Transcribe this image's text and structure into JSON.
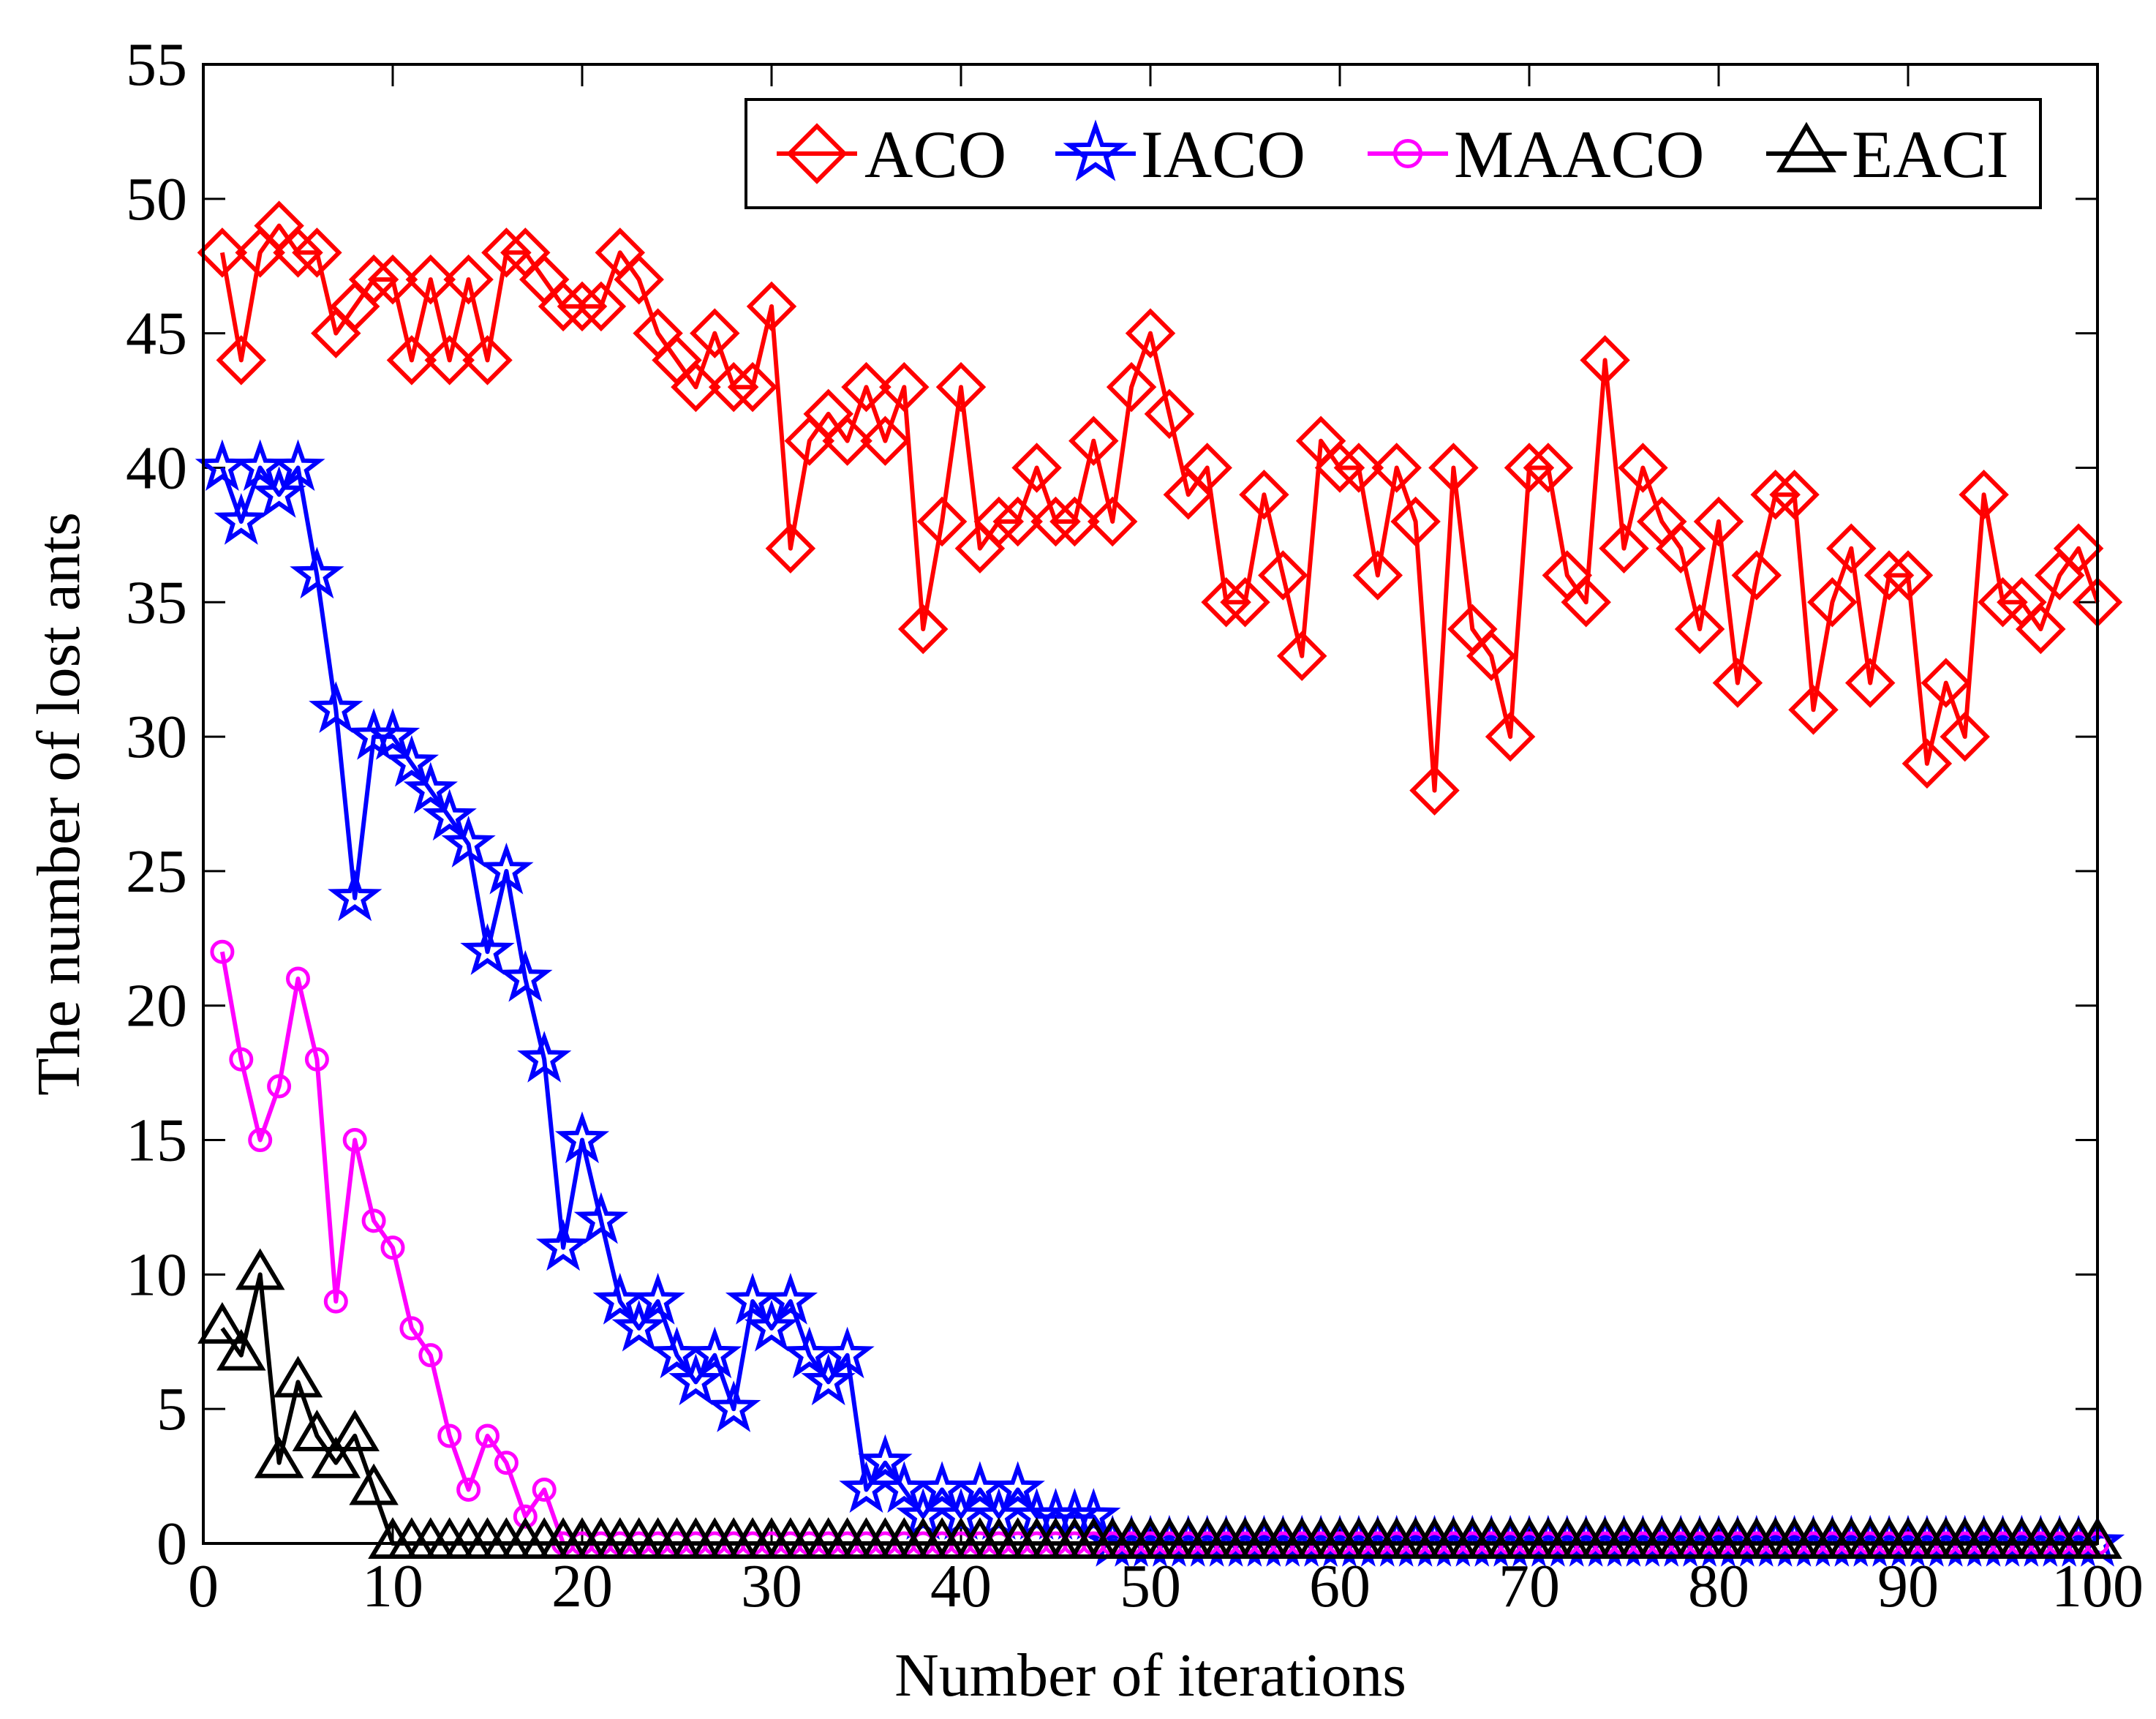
{
  "chart_data": {
    "type": "line",
    "title": "",
    "xlabel": "Number of iterations",
    "ylabel": "The number of lost ants",
    "xlim": [
      0,
      100
    ],
    "ylim": [
      0,
      55
    ],
    "xticks": [
      0,
      10,
      20,
      30,
      40,
      50,
      60,
      70,
      80,
      90,
      100
    ],
    "yticks": [
      0,
      5,
      10,
      15,
      20,
      25,
      30,
      35,
      40,
      45,
      50,
      55
    ],
    "grid": false,
    "legend_position": "top-right",
    "series": [
      {
        "name": "ACO",
        "color": "#ff0000",
        "marker": "diamond",
        "x": [
          1,
          2,
          3,
          4,
          5,
          6,
          7,
          8,
          9,
          10,
          11,
          12,
          13,
          14,
          15,
          16,
          17,
          18,
          19,
          20,
          21,
          22,
          23,
          24,
          25,
          26,
          27,
          28,
          29,
          30,
          31,
          32,
          33,
          34,
          35,
          36,
          37,
          38,
          39,
          40,
          41,
          42,
          43,
          44,
          45,
          46,
          47,
          48,
          49,
          50,
          51,
          52,
          53,
          54,
          55,
          56,
          57,
          58,
          59,
          60,
          61,
          62,
          63,
          64,
          65,
          66,
          67,
          68,
          69,
          70,
          71,
          72,
          73,
          74,
          75,
          76,
          77,
          78,
          79,
          80,
          81,
          82,
          83,
          84,
          85,
          86,
          87,
          88,
          89,
          90,
          91,
          92,
          93,
          94,
          95,
          96,
          97,
          98,
          99,
          100
        ],
        "values": [
          48,
          44,
          48,
          49,
          48,
          48,
          45,
          46,
          47,
          47,
          44,
          47,
          44,
          47,
          44,
          48,
          48,
          47,
          46,
          46,
          46,
          48,
          47,
          45,
          44,
          43,
          45,
          43,
          43,
          46,
          37,
          41,
          42,
          41,
          43,
          41,
          43,
          34,
          38,
          43,
          37,
          38,
          38,
          40,
          38,
          38,
          41,
          38,
          43,
          45,
          42,
          39,
          40,
          35,
          35,
          39,
          36,
          33,
          41,
          40,
          40,
          36,
          40,
          38,
          28,
          40,
          34,
          33,
          30,
          40,
          40,
          36,
          35,
          44,
          37,
          40,
          38,
          37,
          34,
          38,
          32,
          36,
          39,
          39,
          31,
          35,
          37,
          32,
          36,
          36,
          29,
          32,
          30,
          39,
          35,
          35,
          34,
          36,
          37,
          35
        ]
      },
      {
        "name": "IACO",
        "color": "#0000ff",
        "marker": "star",
        "x": [
          1,
          2,
          3,
          4,
          5,
          6,
          7,
          8,
          9,
          10,
          11,
          12,
          13,
          14,
          15,
          16,
          17,
          18,
          19,
          20,
          21,
          22,
          23,
          24,
          25,
          26,
          27,
          28,
          29,
          30,
          31,
          32,
          33,
          34,
          35,
          36,
          37,
          38,
          39,
          40,
          41,
          42,
          43,
          44,
          45,
          46,
          47,
          48,
          49,
          50,
          51,
          52,
          53,
          54,
          55,
          56,
          57,
          58,
          59,
          60,
          61,
          62,
          63,
          64,
          65,
          66,
          67,
          68,
          69,
          70,
          71,
          72,
          73,
          74,
          75,
          76,
          77,
          78,
          79,
          80,
          81,
          82,
          83,
          84,
          85,
          86,
          87,
          88,
          89,
          90,
          91,
          92,
          93,
          94,
          95,
          96,
          97,
          98,
          99,
          100
        ],
        "values": [
          40,
          38,
          40,
          39,
          40,
          36,
          31,
          24,
          30,
          30,
          29,
          28,
          27,
          26,
          22,
          25,
          21,
          18,
          11,
          15,
          12,
          9,
          8,
          9,
          7,
          6,
          7,
          5,
          9,
          8,
          9,
          7,
          6,
          7,
          2,
          3,
          2,
          1,
          2,
          1,
          2,
          1,
          2,
          1,
          1,
          1,
          1,
          0,
          0,
          0,
          0,
          0,
          0,
          0,
          0,
          0,
          0,
          0,
          0,
          0,
          0,
          0,
          0,
          0,
          0,
          0,
          0,
          0,
          0,
          0,
          0,
          0,
          0,
          0,
          0,
          0,
          0,
          0,
          0,
          0,
          0,
          0,
          0,
          0,
          0,
          0,
          0,
          0,
          0,
          0,
          0,
          0,
          0,
          0,
          0,
          0,
          0,
          0,
          0,
          0
        ]
      },
      {
        "name": "MAACO",
        "color": "#ff00ff",
        "marker": "circle",
        "x": [
          1,
          2,
          3,
          4,
          5,
          6,
          7,
          8,
          9,
          10,
          11,
          12,
          13,
          14,
          15,
          16,
          17,
          18,
          19,
          20,
          21,
          22,
          23,
          24,
          25,
          26,
          27,
          28,
          29,
          30,
          31,
          32,
          33,
          34,
          35,
          36,
          37,
          38,
          39,
          40,
          41,
          42,
          43,
          44,
          45,
          46,
          47,
          48,
          49,
          50,
          51,
          52,
          53,
          54,
          55,
          56,
          57,
          58,
          59,
          60,
          61,
          62,
          63,
          64,
          65,
          66,
          67,
          68,
          69,
          70,
          71,
          72,
          73,
          74,
          75,
          76,
          77,
          78,
          79,
          80,
          81,
          82,
          83,
          84,
          85,
          86,
          87,
          88,
          89,
          90,
          91,
          92,
          93,
          94,
          95,
          96,
          97,
          98,
          99,
          100
        ],
        "values": [
          22,
          18,
          15,
          17,
          21,
          18,
          9,
          15,
          12,
          11,
          8,
          7,
          4,
          2,
          4,
          3,
          1,
          2,
          0,
          0,
          0,
          0,
          0,
          0,
          0,
          0,
          0,
          0,
          0,
          0,
          0,
          0,
          0,
          0,
          0,
          0,
          0,
          0,
          0,
          0,
          0,
          0,
          0,
          0,
          0,
          0,
          0,
          0,
          0,
          0,
          0,
          0,
          0,
          0,
          0,
          0,
          0,
          0,
          0,
          0,
          0,
          0,
          0,
          0,
          0,
          0,
          0,
          0,
          0,
          0,
          0,
          0,
          0,
          0,
          0,
          0,
          0,
          0,
          0,
          0,
          0,
          0,
          0,
          0,
          0,
          0,
          0,
          0,
          0,
          0,
          0,
          0,
          0,
          0,
          0,
          0,
          0,
          0,
          0,
          0
        ]
      },
      {
        "name": "EACI",
        "color": "#000000",
        "marker": "triangle",
        "x": [
          1,
          2,
          3,
          4,
          5,
          6,
          7,
          8,
          9,
          10,
          11,
          12,
          13,
          14,
          15,
          16,
          17,
          18,
          19,
          20,
          21,
          22,
          23,
          24,
          25,
          26,
          27,
          28,
          29,
          30,
          31,
          32,
          33,
          34,
          35,
          36,
          37,
          38,
          39,
          40,
          41,
          42,
          43,
          44,
          45,
          46,
          47,
          48,
          49,
          50,
          51,
          52,
          53,
          54,
          55,
          56,
          57,
          58,
          59,
          60,
          61,
          62,
          63,
          64,
          65,
          66,
          67,
          68,
          69,
          70,
          71,
          72,
          73,
          74,
          75,
          76,
          77,
          78,
          79,
          80,
          81,
          82,
          83,
          84,
          85,
          86,
          87,
          88,
          89,
          90,
          91,
          92,
          93,
          94,
          95,
          96,
          97,
          98,
          99,
          100
        ],
        "values": [
          8,
          7,
          10,
          3,
          6,
          4,
          3,
          4,
          2,
          0,
          0,
          0,
          0,
          0,
          0,
          0,
          0,
          0,
          0,
          0,
          0,
          0,
          0,
          0,
          0,
          0,
          0,
          0,
          0,
          0,
          0,
          0,
          0,
          0,
          0,
          0,
          0,
          0,
          0,
          0,
          0,
          0,
          0,
          0,
          0,
          0,
          0,
          0,
          0,
          0,
          0,
          0,
          0,
          0,
          0,
          0,
          0,
          0,
          0,
          0,
          0,
          0,
          0,
          0,
          0,
          0,
          0,
          0,
          0,
          0,
          0,
          0,
          0,
          0,
          0,
          0,
          0,
          0,
          0,
          0,
          0,
          0,
          0,
          0,
          0,
          0,
          0,
          0,
          0,
          0,
          0,
          0,
          0,
          0,
          0,
          0,
          0,
          0,
          0,
          0
        ]
      }
    ]
  }
}
